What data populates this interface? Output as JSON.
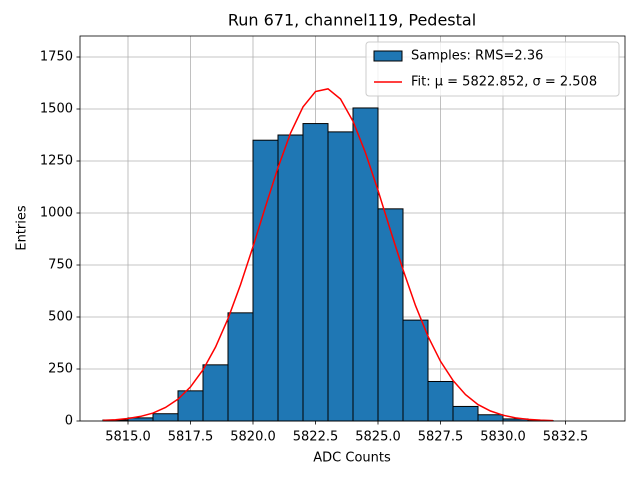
{
  "chart_data": {
    "type": "histogram",
    "title": "Run 671, channel119, Pedestal",
    "xlabel": "ADC Counts",
    "ylabel": "Entries",
    "bins": [
      5814,
      5815,
      5816,
      5817,
      5818,
      5819,
      5820,
      5821,
      5822,
      5823,
      5824,
      5825,
      5826,
      5827,
      5828,
      5829,
      5830,
      5831,
      5832
    ],
    "series": [
      {
        "name": "Samples: RMS=2.36",
        "type": "histogram",
        "color": "#1f77b4",
        "edgecolor": "#000000",
        "values": [
          5,
          15,
          35,
          145,
          270,
          520,
          1350,
          1375,
          1430,
          1390,
          1505,
          1020,
          485,
          190,
          70,
          30,
          10,
          2
        ]
      },
      {
        "name": "Fit: μ = 5822.852, σ = 2.508",
        "type": "line",
        "color": "#ff0000",
        "x": [
          5814,
          5814.5,
          5815,
          5815.5,
          5816,
          5816.5,
          5817,
          5817.5,
          5818,
          5818.5,
          5819,
          5819.5,
          5820,
          5820.5,
          5821,
          5821.5,
          5822,
          5822.5,
          5823,
          5823.5,
          5824,
          5824.5,
          5825,
          5825.5,
          5826,
          5826.5,
          5827,
          5827.5,
          5828,
          5828.5,
          5829,
          5829.5,
          5830,
          5830.5,
          5831,
          5831.5,
          5832
        ],
        "values": [
          3,
          6,
          12,
          22,
          38,
          65,
          105,
          164,
          246,
          355,
          492,
          655,
          838,
          1031,
          1218,
          1384,
          1510,
          1584,
          1597,
          1548,
          1441,
          1289,
          1109,
          916,
          728,
          555,
          407,
          287,
          195,
          127,
          79,
          48,
          28,
          15,
          8,
          4,
          2
        ]
      }
    ],
    "xlim": [
      5813.08,
      5834.88
    ],
    "ylim": [
      0,
      1851
    ],
    "xticks": [
      {
        "value": 5815,
        "label": "5815.0"
      },
      {
        "value": 5817.5,
        "label": "5817.5"
      },
      {
        "value": 5820,
        "label": "5820.0"
      },
      {
        "value": 5822.5,
        "label": "5822.5"
      },
      {
        "value": 5825,
        "label": "5825.0"
      },
      {
        "value": 5827.5,
        "label": "5827.5"
      },
      {
        "value": 5830,
        "label": "5830.0"
      },
      {
        "value": 5832.5,
        "label": "5832.5"
      }
    ],
    "yticks": [
      0,
      250,
      500,
      750,
      1000,
      1250,
      1500,
      1750
    ],
    "grid": true,
    "legend": "upper right"
  }
}
